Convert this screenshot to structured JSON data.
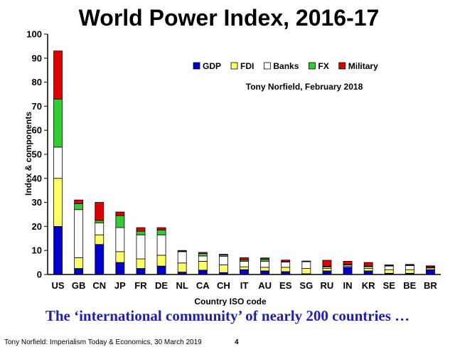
{
  "chart_data": {
    "type": "bar",
    "stacked": true,
    "title": "World Power Index, 2016-17",
    "xlabel": "Country ISO code",
    "ylabel": "Index & components",
    "ylim": [
      0,
      100
    ],
    "yticks": [
      0,
      10,
      20,
      30,
      40,
      50,
      60,
      70,
      80,
      90,
      100
    ],
    "grid": false,
    "legend_position": "top-right",
    "annotation": "Tony Norfield, February 2018",
    "categories": [
      "US",
      "GB",
      "CN",
      "JP",
      "FR",
      "DE",
      "NL",
      "CA",
      "CH",
      "IT",
      "AU",
      "ES",
      "SG",
      "RU",
      "IN",
      "KR",
      "SE",
      "BE",
      "BR"
    ],
    "series": [
      {
        "name": "GDP",
        "color": "#0000cc",
        "values": [
          20,
          2.5,
          12.5,
          5,
          2.5,
          3.5,
          1,
          1.8,
          0.8,
          2,
          1.5,
          1.2,
          0.3,
          1.5,
          3,
          1.5,
          0.5,
          0.5,
          2
        ]
      },
      {
        "name": "FDI",
        "color": "#ffff66",
        "values": [
          20,
          4.5,
          4,
          4.5,
          4,
          4.5,
          3.8,
          3.7,
          3.2,
          1.2,
          1.5,
          1.8,
          2.2,
          1,
          0.5,
          1,
          1.5,
          1.5,
          0.7
        ]
      },
      {
        "name": "Banks",
        "color": "#ffffff",
        "values": [
          13,
          20,
          5,
          10,
          10,
          8.5,
          4.7,
          2.2,
          3.6,
          2.3,
          2.5,
          2.2,
          2.8,
          0.6,
          0.5,
          0.7,
          1.5,
          1.7,
          0.3
        ]
      },
      {
        "name": "FX",
        "color": "#33cc33",
        "values": [
          20,
          2.5,
          1,
          5,
          1.5,
          2,
          0.2,
          1,
          0.6,
          0.5,
          0.8,
          0.3,
          0.2,
          0.3,
          0.2,
          0.3,
          0.3,
          0.3,
          0.2
        ]
      },
      {
        "name": "Military",
        "color": "#dd0000",
        "values": [
          20,
          1.5,
          7.5,
          1.5,
          1.5,
          1,
          0.3,
          0.5,
          0.2,
          1,
          0.6,
          0.5,
          0.1,
          2.5,
          1.3,
          1.5,
          0.2,
          0.2,
          0.4
        ]
      }
    ]
  },
  "caption": "The ‘international community’ of nearly 200 countries …",
  "footer": {
    "source": "Tony Norfield: Imperialism Today & Economics, 30 March 2019",
    "page_number": "4"
  }
}
